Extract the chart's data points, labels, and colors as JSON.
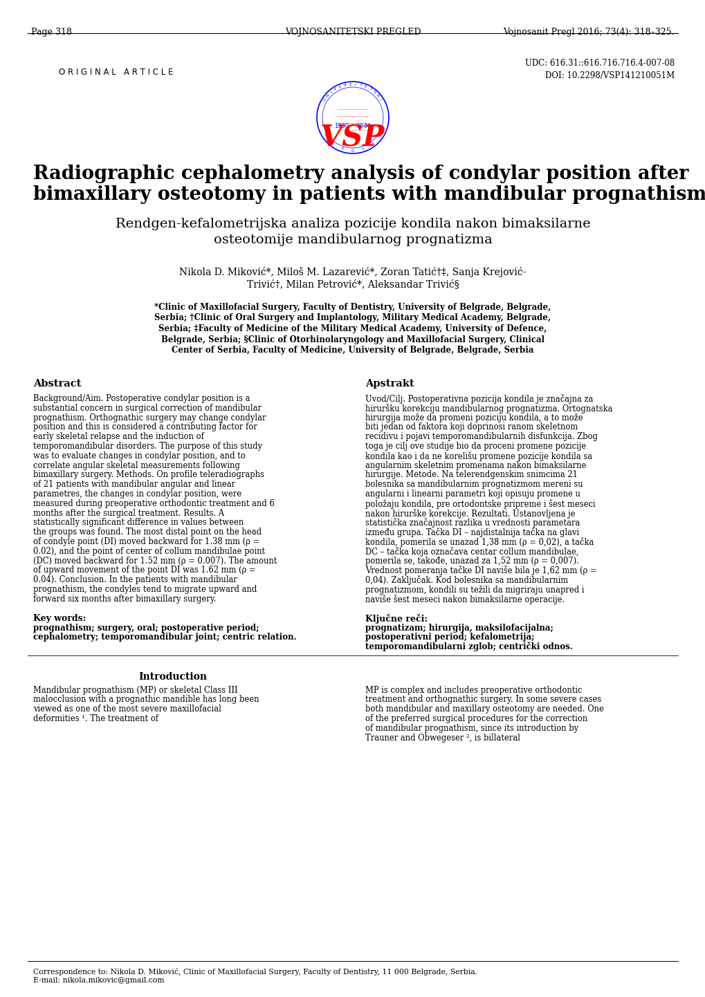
{
  "page_num": "Page 318",
  "journal_center": "VOJNOSANITETSKI PREGLED",
  "journal_right": "Vojnosanit Pregl 2016; 73(4): 318–325.",
  "article_type": "O R I G I N A L   A R T I C L E",
  "udc": "UDC: 616.31::616.716.716.4-007-08",
  "doi": "DOI: 10.2298/VSP141210051M",
  "title_en_1": "Radiographic cephalometry analysis of condylar position after",
  "title_en_2": "bimaxillary osteotomy in patients with mandibular prognathism",
  "title_sr_1": "Rendgen-kefalometrijska analiza pozicije kondila nakon bimaksilarne",
  "title_sr_2": "osteotomije mandibularnog prognatizma",
  "authors_1": "Nikola D. Miković*, Miloš M. Lazarević*, Zoran Tatić†‡, Sanja Krejović-",
  "authors_2": "Trivić†, Milan Petrović*, Aleksandar Trivić§",
  "aff_1": "*Clinic of Maxillofacial Surgery, Faculty of Dentistry, University of Belgrade, Belgrade,",
  "aff_2": "Serbia; †Clinic of Oral Surgery and Implantology, Military Medical Academy, Belgrade,",
  "aff_3": "Serbia; ‡Faculty of Medicine of the Military Medical Academy, University of Defence,",
  "aff_4": "Belgrade, Serbia; §Clinic of Otorhinolaryngology and Maxillofacial Surgery, Clinical",
  "aff_5": "Center of Serbia, Faculty of Medicine, University of Belgrade, Belgrade, Serbia",
  "abstract_label": "Abstract",
  "apstrakt_label": "Apstrakt",
  "abs_en_bold_1": "Background/Aim.",
  "abs_en_rest_1": " Postoperative condylar position is a substantial concern in surgical correction of mandibular prognathism. Orthognathic surgery may change condylar position and this is considered a contributing factor for early skeletal relapse and the induction of temporomandibular disorders. The purpose of this study was to evaluate changes in condylar position, and to correlate angular skeletal measurements following bimaxillary surgery.",
  "abs_en_bold_2": " Methods.",
  "abs_en_rest_2": " On profile teleradiographs of 21 patients with mandibular angular and linear parametres, the changes in condylar position, were measured during preoperative orthodontic treatment and 6 months after the surgical treatment.",
  "abs_en_bold_3": " Results.",
  "abs_en_rest_3": " A statistically significant difference in values between the groups was found. The most distal point on the head of condyle point (DI) moved backward for 1.38 mm (ρ = 0.02), and the point of center of collum mandibulae point (DC) moved backward for 1.52 mm (ρ = 0.007). The amount of upward movement of the point DI was 1.62 mm (ρ = 0.04).",
  "abs_en_bold_4": " Conclusion.",
  "abs_en_rest_4": " In the patients with mandibular prognathism, the condyles tend to migrate upward and forward six months after bimaxillary surgery.",
  "abs_sr_bold_1": "Uvod/Cilj.",
  "abs_sr_rest_1": " Postoperativna pozicija kondila je značajna za hiruršku korekciju mandibularnog prognatizma. Ortognatska hirurgija može da promeni poziciju kondila, a to može biti jedan od faktora koji doprinosi ranom skeletnom recidivu i pojavi temporomandibularnih disfunkcija. Zbog toga je cilj ove studije bio da proceni promene pozicije kondila kao i da ne korelišu promene pozicije kondila sa angularnim skeletnim promenama nakon bimaksilarne hirurgije.",
  "abs_sr_bold_2": " Metode.",
  "abs_sr_rest_2": " Na telerendgenskim snimcima 21 bolesnika sa mandibularnim prognatizmom mereni su angularni i linearni parametri koji opisuju promene u položaju kondila, pre ortodontske pripreme i šest meseci nakon hirurške korekcije.",
  "abs_sr_bold_3": " Rezultati.",
  "abs_sr_rest_3": " Ustanovljena je statistička značajnost razlika u vrednosti parametara između grupa. Tačka  DI – najdistalnija tačka na glavi kondila, pomerila se unazad 1,38 mm (ρ = 0,02), a tačka DC – tačka koja označava centar",
  "abs_sr_italic_1": " collum mandibulae",
  "abs_sr_rest_3b": ", pomerila se, takođe, unazad za 1,52 mm (ρ = 0,007). Vrednost pomeranja tačke DI naviše bila je 1,62 mm (ρ = 0,04).",
  "abs_sr_bold_4": " Zaključak.",
  "abs_sr_rest_4": " Kod bolesnika sa mandibularnim prognatizmom, kondili su težili da migriraju unapred i naviše šest meseci nakon bimaksilarne operacije.",
  "kw_label": "Key words:",
  "kw_en_1": "prognathism; surgery, oral; postoperative period;",
  "kw_en_2": "cephalometry; temporomandibular joint; centric relation.",
  "kl_label": "Ključne reči:",
  "kw_sr_1": "prognatizam; hirurgija, maksilofacijalna;",
  "kw_sr_2": "postoperativni period; kefalometrija;",
  "kw_sr_3": "temporomandibularni zglob; centrički odnos.",
  "intro_label": "Introduction",
  "intro_indent": "    Mandibular prognathism (MP) or skeletal Class III malocclusion with a prognathic mandible has long been viewed as one of the most severe maxillofacial deformities ¹. The treatment of",
  "intro_right": "MP is complex and includes preoperative orthodontic treatment and orthognathic surgery. In some severe cases both mandibular and maxillary osteotomy are needed. One of the preferred surgical procedures for the correction of mandibular prognathism, since its introduction by Trauner and Obwegeser ², is billateral",
  "corr_1": "Correspondence to: Nikola D. Miković, Clinic of Maxillofacial Surgery, Faculty of Dentistry, 11 000 Belgrade, Serbia.",
  "corr_2": "E-mail: nikola.mikovic@gmail.com",
  "bg_color": "#ffffff"
}
